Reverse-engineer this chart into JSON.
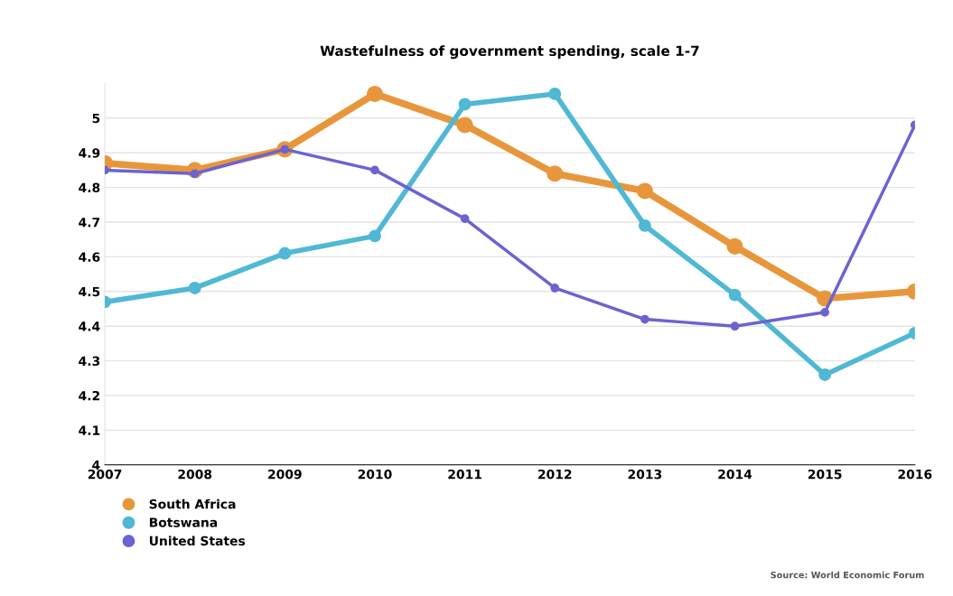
{
  "chart_data": {
    "type": "line",
    "title": "Wastefulness of government spending, scale 1-7",
    "x": [
      2007,
      2008,
      2009,
      2010,
      2011,
      2012,
      2013,
      2014,
      2015,
      2016
    ],
    "series": [
      {
        "name": "South Africa",
        "color": "#e8963c",
        "values": [
          4.87,
          4.85,
          4.91,
          5.07,
          4.98,
          4.84,
          4.79,
          4.63,
          4.48,
          4.5
        ]
      },
      {
        "name": "Botswana",
        "color": "#4fb8d4",
        "values": [
          4.47,
          4.51,
          4.61,
          4.66,
          5.04,
          5.07,
          4.69,
          4.49,
          4.26,
          4.38
        ]
      },
      {
        "name": "United States",
        "color": "#6b63d1",
        "values": [
          4.85,
          4.84,
          4.91,
          4.85,
          4.71,
          4.51,
          4.42,
          4.4,
          4.44,
          4.98
        ]
      }
    ],
    "xlim": [
      2007,
      2016
    ],
    "xticks": [
      2007,
      2008,
      2009,
      2010,
      2011,
      2012,
      2013,
      2014,
      2015,
      2016
    ],
    "ylim": [
      4,
      5.1
    ],
    "yticks": [
      4,
      4.1,
      4.2,
      4.3,
      4.4,
      4.5,
      4.6,
      4.7,
      4.8,
      4.9,
      5
    ],
    "grid": "y",
    "legend": "bottom left",
    "marker": "circle",
    "line_style": "solid",
    "annotations": [
      "Source: World Economic Forum"
    ]
  }
}
